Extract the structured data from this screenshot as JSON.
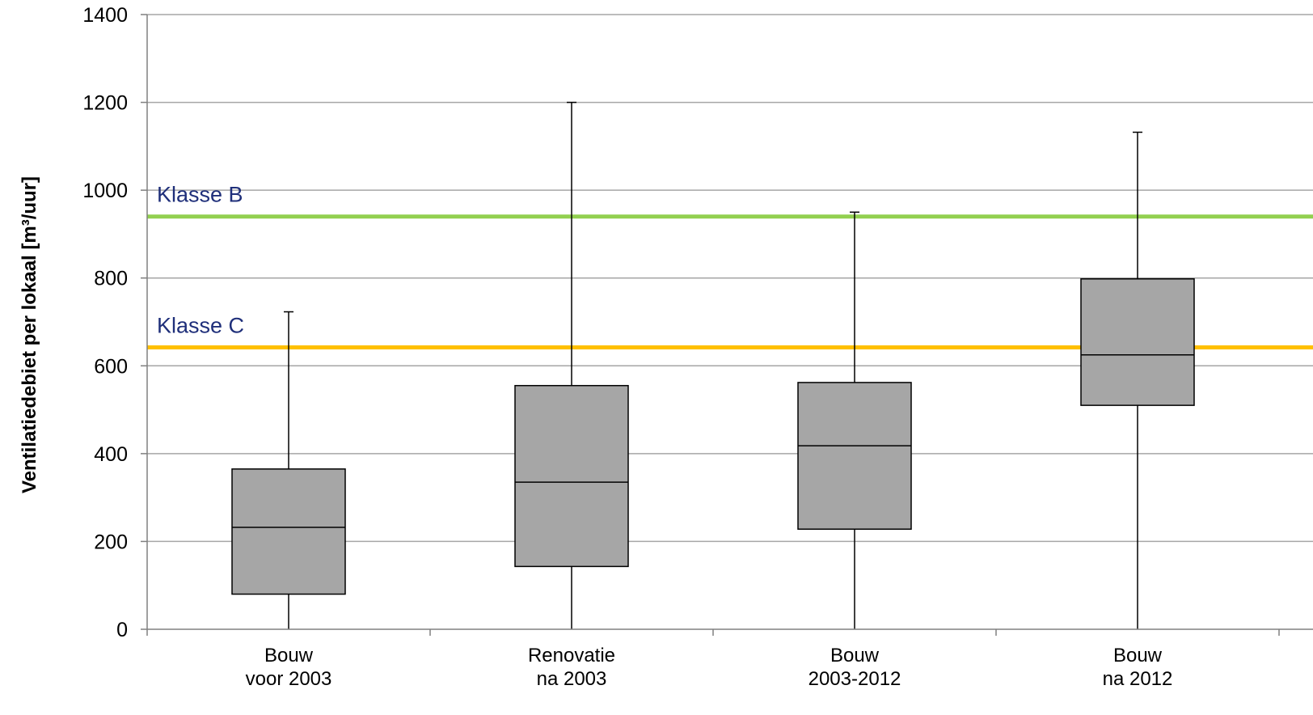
{
  "chart_data": {
    "type": "boxplot",
    "title": "",
    "xlabel": "",
    "ylabel": "Ventilatiedebiet per lokaal [m³/uur]",
    "ylim": [
      0,
      1400
    ],
    "yticks": [
      0,
      200,
      400,
      600,
      800,
      1000,
      1200,
      1400
    ],
    "grid": true,
    "categories": [
      {
        "line1": "Bouw",
        "line2": "voor 2003"
      },
      {
        "line1": "Renovatie",
        "line2": "na 2003"
      },
      {
        "line1": "Bouw",
        "line2": "2003-2012"
      },
      {
        "line1": "Bouw",
        "line2": "na 2012"
      }
    ],
    "boxes": [
      {
        "min": 0,
        "q1": 80,
        "median": 232,
        "q3": 365,
        "max": 723
      },
      {
        "min": 0,
        "q1": 143,
        "median": 335,
        "q3": 555,
        "max": 1200
      },
      {
        "min": 0,
        "q1": 228,
        "median": 418,
        "q3": 562,
        "max": 950
      },
      {
        "min": 0,
        "q1": 510,
        "median": 625,
        "q3": 798,
        "max": 1132
      }
    ],
    "reference_lines": [
      {
        "label": "Klasse B",
        "value": 940,
        "color": "#92d050"
      },
      {
        "label": "Klasse C",
        "value": 642,
        "color": "#ffc000"
      }
    ],
    "colors": {
      "box_fill": "#a6a6a6",
      "gridline": "#a6a6a6",
      "ref_label": "#1f2f7a"
    }
  }
}
